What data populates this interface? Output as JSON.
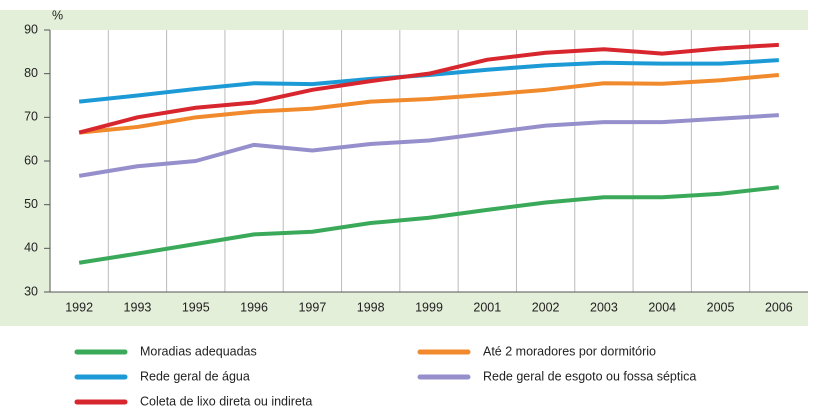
{
  "chart_data": {
    "type": "line",
    "y_unit": "%",
    "categories": [
      "1992",
      "1993",
      "1995",
      "1996",
      "1997",
      "1998",
      "1999",
      "2001",
      "2002",
      "2003",
      "2004",
      "2005",
      "2006"
    ],
    "ylim": [
      30,
      90
    ],
    "yticks": [
      30,
      40,
      50,
      60,
      70,
      80,
      90
    ],
    "grid": true,
    "series": [
      {
        "name": "Moradias adequadas",
        "color": "#3aaa5a",
        "values": [
          36.7,
          38.8,
          41,
          43.2,
          43.8,
          45.8,
          47,
          48.8,
          50.5,
          51.7,
          51.7,
          52.5,
          54
        ]
      },
      {
        "name": "Até 2 moradores por dormitório",
        "color": "#f08a2c",
        "values": [
          66.5,
          67.8,
          70,
          71.3,
          72,
          73.6,
          74.2,
          75.2,
          76.3,
          77.8,
          77.7,
          78.5,
          79.7
        ]
      },
      {
        "name": "Rede geral de água",
        "color": "#1c9ad6",
        "values": [
          73.6,
          75,
          76.5,
          77.8,
          77.6,
          78.8,
          79.7,
          80.9,
          81.9,
          82.5,
          82.3,
          82.3,
          83.1
        ]
      },
      {
        "name": "Rede geral de esgoto ou fossa séptica",
        "color": "#9590cc",
        "values": [
          56.6,
          58.8,
          60,
          63.7,
          62.4,
          63.9,
          64.7,
          66.4,
          68.1,
          68.9,
          68.9,
          69.7,
          70.5
        ]
      },
      {
        "name": "Coleta de lixo direta ou indireta",
        "color": "#d8262e",
        "values": [
          66.5,
          70,
          72.2,
          73.4,
          76.3,
          78.3,
          80,
          83.2,
          84.8,
          85.6,
          84.6,
          85.8,
          86.6
        ]
      }
    ]
  }
}
